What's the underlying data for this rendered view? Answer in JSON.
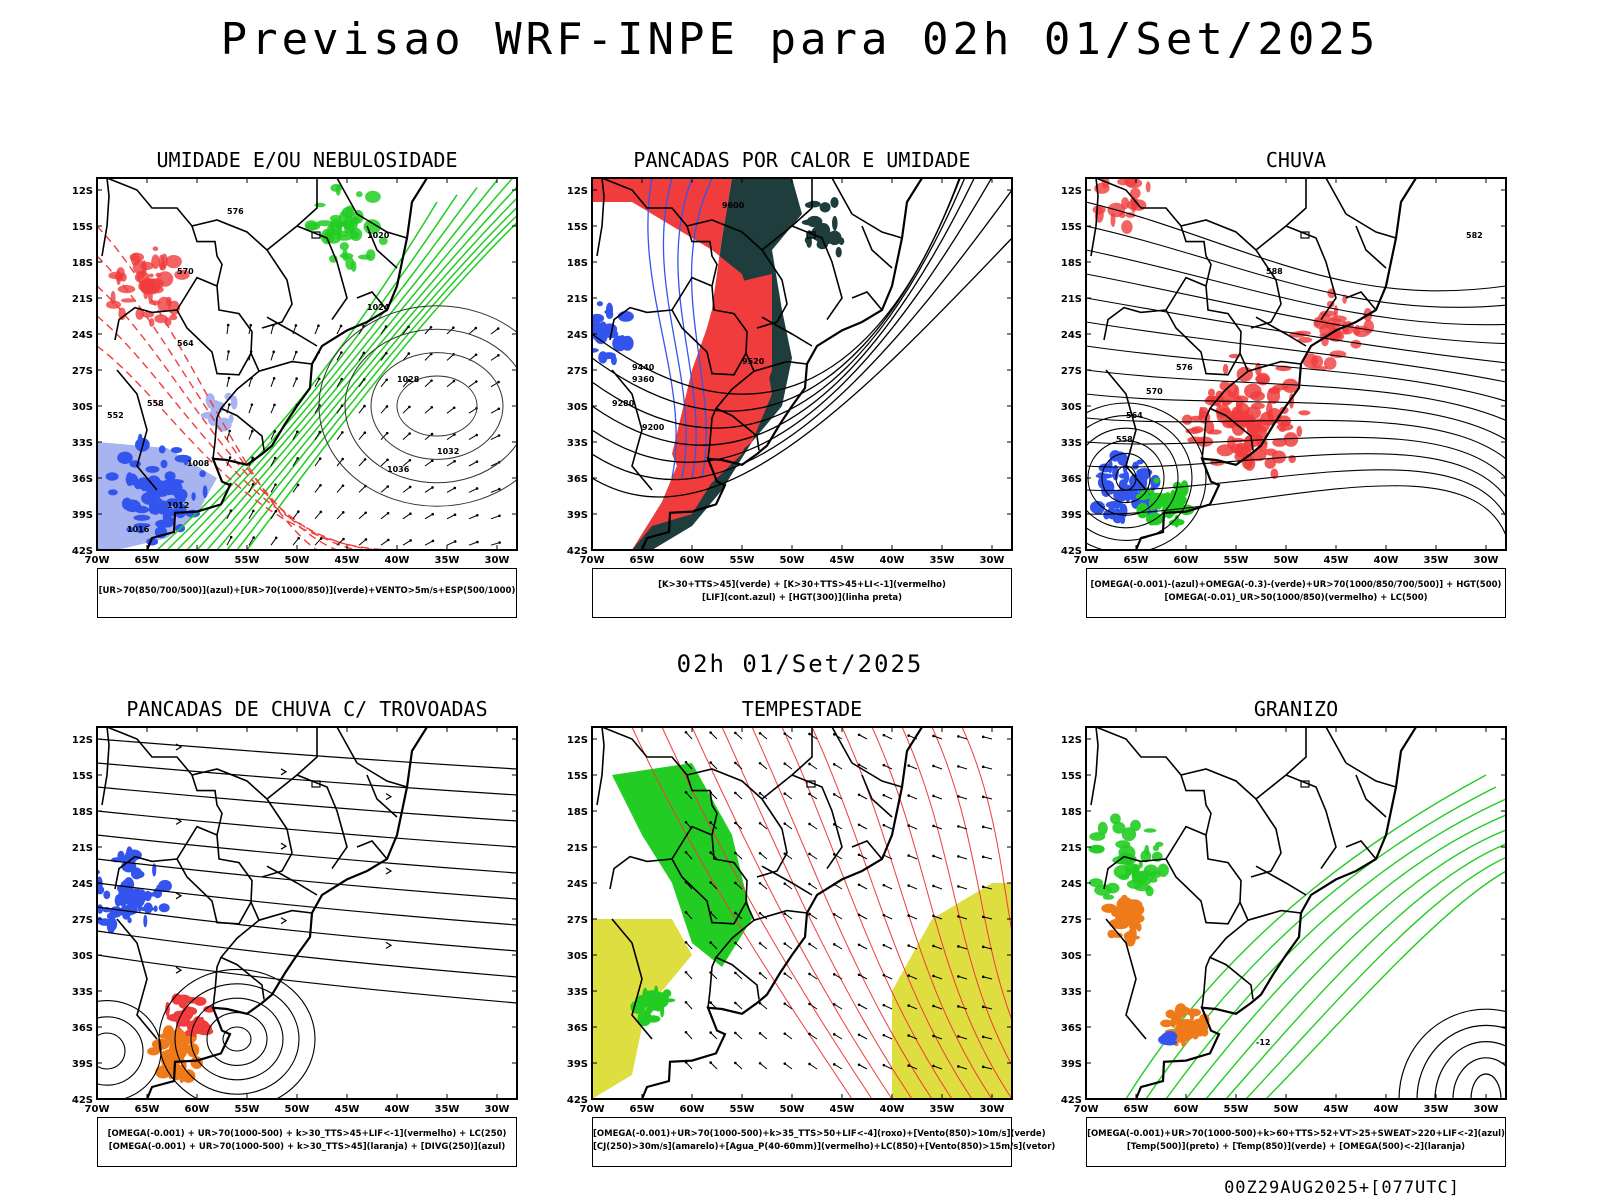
{
  "title": "Previsao WRF-INPE  para 02h 01/Set/2025",
  "subtitle": "02h 01/Set/2025",
  "footer": "00Z29AUG2025+[077UTC]",
  "axes": {
    "lat_ticks": [
      "12S",
      "15S",
      "18S",
      "21S",
      "24S",
      "27S",
      "30S",
      "33S",
      "36S",
      "39S",
      "42S"
    ],
    "lon_ticks": [
      "70W",
      "65W",
      "60W",
      "55W",
      "50W",
      "45W",
      "40W",
      "35W",
      "30W"
    ]
  },
  "panels": [
    {
      "id": "umidade",
      "title": "UMIDADE E/OU NEBULOSIDADE",
      "legend": [
        "[UR>70(850/700/500)](azul)+[UR>70(1000/850)](verde)+VENTO>5m/s+ESP(500/1000)"
      ],
      "contour_labels": [
        "1016",
        "1012",
        "1020",
        "1024",
        "1028",
        "1032",
        "1036",
        "1008",
        "576",
        "570",
        "564",
        "558",
        "552"
      ]
    },
    {
      "id": "pancadas-calor",
      "title": "PANCADAS POR CALOR E UMIDADE",
      "legend": [
        "[K>30+TTS>45](verde) + [K>30+TTS>45+LI<-1](vermelho)",
        "[LIF](cont.azul) + [HGT(300)](linha preta)"
      ],
      "contour_labels": [
        "9600",
        "9520",
        "9440",
        "9360",
        "9280",
        "9200"
      ]
    },
    {
      "id": "chuva",
      "title": "CHUVA",
      "legend": [
        "[OMEGA(-0.001)-(azul)+OMEGA(-0.3)-(verde)+UR>70(1000/850/700/500)] + HGT(500)",
        "[OMEGA(-0.01)_UR>50(1000/850)(vermelho) + LC(500)"
      ],
      "contour_labels": [
        "582",
        "588",
        "576",
        "570",
        "564",
        "558"
      ]
    },
    {
      "id": "pancadas-trovoadas",
      "title": "PANCADAS DE CHUVA C/ TROVOADAS",
      "legend": [
        "[OMEGA(-0.001) + UR>70(1000-500) + k>30_TTS>45+LIF<-1](vermelho) + LC(250)",
        "[OMEGA(-0.001) + UR>70(1000-500) + k>30_TTS>45](laranja) + [DIVG(250)](azul)"
      ],
      "contour_labels": []
    },
    {
      "id": "tempestade",
      "title": "TEMPESTADE",
      "legend": [
        "[OMEGA(-0.001)+UR>70(1000-500)+k>35_TTS>50+LIF<-4](roxo)+[Vento(850)>10m/s](verde)",
        "[CJ(250)>30m/s](amarelo)+[Agua_P(40-60mm)](vermelho)+LC(850)+[Vento(850)>15m/s](vetor)"
      ],
      "contour_labels": []
    },
    {
      "id": "granizo",
      "title": "GRANIZO",
      "legend": [
        "[OMEGA(-0.001)+UR>70(1000-500)+k>60+TTS>52+VT>25+SWEAT>220+LIF<-2](azul)",
        "[Temp(500)](preto) + [Temp(850)](verde) + [OMEGA(500)<-2](laranja)"
      ],
      "contour_labels": [
        "-12"
      ]
    }
  ],
  "colors": {
    "red": "#f03c3c",
    "green": "#22cc22",
    "blue": "#3355ee",
    "lightblue": "#a8b4f0",
    "darkteal": "#1f3d3d",
    "yellow": "#dede40",
    "orange": "#ee7a1a"
  }
}
